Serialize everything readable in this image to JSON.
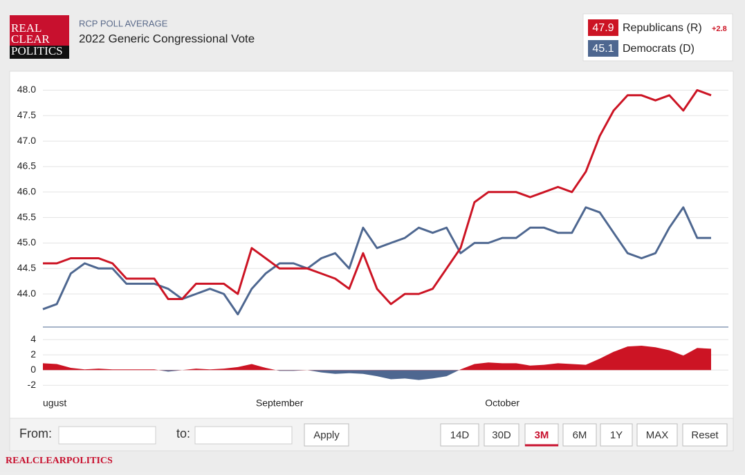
{
  "header": {
    "logo": [
      "REAL",
      "CLEAR",
      "POLITICS"
    ],
    "kicker": "RCP POLL AVERAGE",
    "title": "2022 Generic Congressional Vote"
  },
  "legend": [
    {
      "value": 47.9,
      "name": "Republicans (R)",
      "spread": "+2.8",
      "color": "#cc1424"
    },
    {
      "value": 45.1,
      "name": "Democrats (D)",
      "color": "#4e6790"
    }
  ],
  "chart_data": [
    {
      "type": "line",
      "categories": [
        "ugust",
        null,
        null,
        null,
        null,
        null,
        null,
        null,
        null,
        null,
        null,
        null,
        null,
        null,
        null,
        null,
        null,
        "September",
        null,
        null,
        null,
        null,
        null,
        null,
        null,
        null,
        null,
        null,
        null,
        null,
        null,
        null,
        null,
        "October",
        null,
        null,
        null,
        null,
        null,
        null,
        null,
        null,
        null,
        null,
        null,
        null,
        null,
        null,
        null
      ],
      "series": [
        {
          "name": "Republicans (R)",
          "color": "#cc1424",
          "values": [
            44.6,
            44.6,
            44.7,
            44.7,
            44.7,
            44.6,
            44.3,
            44.3,
            44.3,
            43.9,
            43.9,
            44.2,
            44.2,
            44.2,
            44.0,
            44.9,
            44.7,
            44.5,
            44.5,
            44.5,
            44.4,
            44.3,
            44.1,
            44.8,
            44.1,
            43.8,
            44.0,
            44.0,
            44.1,
            44.5,
            44.9,
            45.8,
            46.0,
            46.0,
            46.0,
            45.9,
            46.0,
            46.1,
            46.0,
            46.4,
            47.1,
            47.6,
            47.9,
            47.9,
            47.8,
            47.9,
            47.6,
            48.0,
            47.9
          ]
        },
        {
          "name": "Democrats (D)",
          "color": "#4e6790",
          "values": [
            43.7,
            43.8,
            44.4,
            44.6,
            44.5,
            44.5,
            44.2,
            44.2,
            44.2,
            44.1,
            43.9,
            44.0,
            44.1,
            44.0,
            43.6,
            44.1,
            44.4,
            44.6,
            44.6,
            44.5,
            44.7,
            44.8,
            44.5,
            45.3,
            44.9,
            45.0,
            45.1,
            45.3,
            45.2,
            45.3,
            44.8,
            45.0,
            45.0,
            45.1,
            45.1,
            45.3,
            45.3,
            45.2,
            45.2,
            45.7,
            45.6,
            45.2,
            44.8,
            44.7,
            44.8,
            45.3,
            45.7,
            45.1,
            45.1
          ]
        }
      ],
      "ylim": [
        43.35,
        48.25
      ],
      "yticks": [
        {
          "value": 44,
          "label": "44.0"
        },
        44.5,
        {
          "value": 45,
          "label": "45.0"
        },
        45.5,
        {
          "value": 46,
          "label": "46.0"
        },
        46.5,
        {
          "value": 47,
          "label": "47.0"
        },
        47.5,
        {
          "value": 48,
          "label": "48.0"
        }
      ],
      "grid": true
    },
    {
      "type": "area",
      "values": [
        0.9,
        0.8,
        0.3,
        0.1,
        0.2,
        0.1,
        0.1,
        0.1,
        0.1,
        -0.2,
        0,
        0.2,
        0.1,
        0.2,
        0.4,
        0.8,
        0.3,
        -0.1,
        -0.1,
        0,
        -0.3,
        -0.5,
        -0.4,
        -0.5,
        -0.8,
        -1.2,
        -1.1,
        -1.3,
        -1.1,
        -0.8,
        0.1,
        0.8,
        1.0,
        0.9,
        0.9,
        0.6,
        0.7,
        0.9,
        0.8,
        0.7,
        1.5,
        2.4,
        3.1,
        3.2,
        3.0,
        2.6,
        1.9,
        2.9,
        2.8
      ],
      "positive_color": "#cc1424",
      "negative_color": "#4e6790",
      "ylim": [
        -2.7,
        5.2
      ],
      "yticks": [
        4,
        2,
        0,
        -2
      ],
      "grid": true
    }
  ],
  "controls": {
    "from": "From:",
    "to": "to:",
    "apply": "Apply",
    "ranges": [
      "14D",
      "30D",
      "3M",
      "6M",
      "1Y",
      "MAX",
      "Reset"
    ],
    "active": "3M"
  },
  "footer": "REALCLEARPOLITICS"
}
